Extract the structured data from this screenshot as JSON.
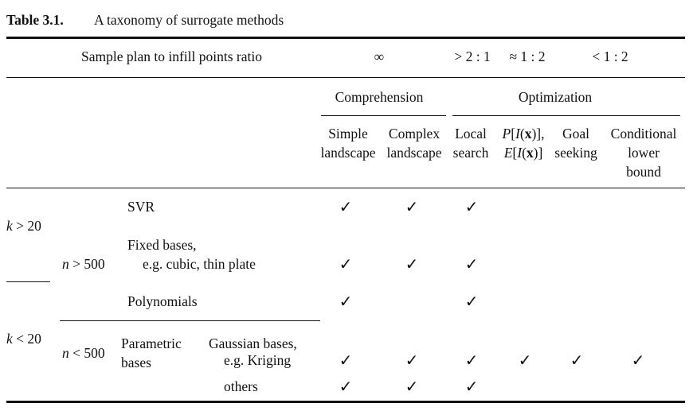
{
  "caption": {
    "label": "Table 3.1.",
    "text": "A taxonomy of surrogate methods"
  },
  "header": {
    "ratio_label": "Sample plan to infill points ratio",
    "ratios": [
      "∞",
      "> 2 : 1",
      "≈ 1 : 2",
      "< 1 : 2"
    ],
    "groups": {
      "comprehension": "Comprehension",
      "optimization": "Optimization"
    },
    "columns": [
      {
        "lines": [
          "Simple",
          "landscape"
        ]
      },
      {
        "lines": [
          "Complex",
          "landscape"
        ]
      },
      {
        "lines": [
          "Local",
          "search"
        ]
      },
      {
        "lines": [
          "P[I(x)],",
          "E[I(x)]"
        ]
      },
      {
        "lines": [
          "Goal",
          "seeking"
        ]
      },
      {
        "lines": [
          "Conditional",
          "lower",
          "bound"
        ]
      }
    ]
  },
  "rows": {
    "k_gt": "k > 20",
    "k_lt": "k < 20",
    "n_gt": "n > 500",
    "n_lt": "n < 500",
    "svr": "SVR",
    "fixed_bases": [
      "Fixed bases,",
      "e.g. cubic, thin plate"
    ],
    "polynomials": "Polynomials",
    "parametric_bases": [
      "Parametric",
      "bases"
    ],
    "gaussian_bases": [
      "Gaussian bases,",
      "e.g. Kriging"
    ],
    "others": "others"
  },
  "checkmark": "✓",
  "checks": {
    "svr": [
      true,
      true,
      true,
      false,
      false,
      false
    ],
    "fixed_bases": [
      true,
      true,
      true,
      false,
      false,
      false
    ],
    "polynomials": [
      true,
      false,
      true,
      false,
      false,
      false
    ],
    "gaussian_bases": [
      true,
      true,
      true,
      true,
      true,
      true
    ],
    "others": [
      true,
      true,
      true,
      false,
      false,
      false
    ]
  }
}
